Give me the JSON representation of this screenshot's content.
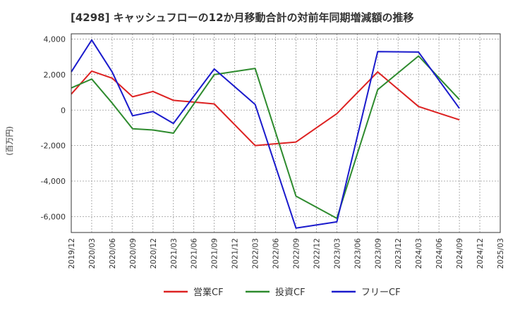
{
  "chart_data": {
    "type": "line",
    "title": "[4298]  キャッシュフローの12か月移動合計の対前年同期増減額の推移",
    "xlabel": "",
    "ylabel": "(百万円)",
    "ylim": [
      -6900,
      4300
    ],
    "yticks": [
      4000,
      2000,
      0,
      -2000,
      -4000,
      -6000
    ],
    "ytick_labels": [
      "4,000",
      "2,000",
      "0",
      "-2,000",
      "-4,000",
      "-6,000"
    ],
    "x": [
      "2019/12",
      "2020/03",
      "2020/06",
      "2020/09",
      "2020/12",
      "2021/03",
      "2021/06",
      "2021/09",
      "2021/12",
      "2022/03",
      "2022/06",
      "2022/09",
      "2022/12",
      "2023/03",
      "2023/06",
      "2023/09",
      "2023/12",
      "2024/03",
      "2024/06",
      "2024/09",
      "2024/12",
      "2025/03"
    ],
    "grid": true,
    "legend_position": "bottom",
    "series": [
      {
        "name": "営業CF",
        "color": "#dd2222",
        "values": [
          900,
          2200,
          1800,
          750,
          1050,
          550,
          450,
          350,
          null,
          -2000,
          null,
          -1800,
          null,
          -200,
          null,
          2150,
          null,
          200,
          null,
          -550,
          null,
          null
        ]
      },
      {
        "name": "投資CF",
        "color": "#2e8b2e",
        "values": [
          1250,
          1750,
          400,
          -1050,
          -1120,
          -1300,
          null,
          2000,
          null,
          2350,
          null,
          -4850,
          null,
          -6100,
          null,
          1150,
          null,
          3050,
          null,
          600,
          null,
          null
        ]
      },
      {
        "name": "フリーCF",
        "color": "#1a1acc",
        "values": [
          2150,
          3950,
          2150,
          -320,
          -80,
          -750,
          null,
          2320,
          null,
          320,
          null,
          -6650,
          null,
          -6300,
          null,
          3300,
          null,
          3270,
          null,
          100,
          null,
          null
        ]
      }
    ]
  }
}
